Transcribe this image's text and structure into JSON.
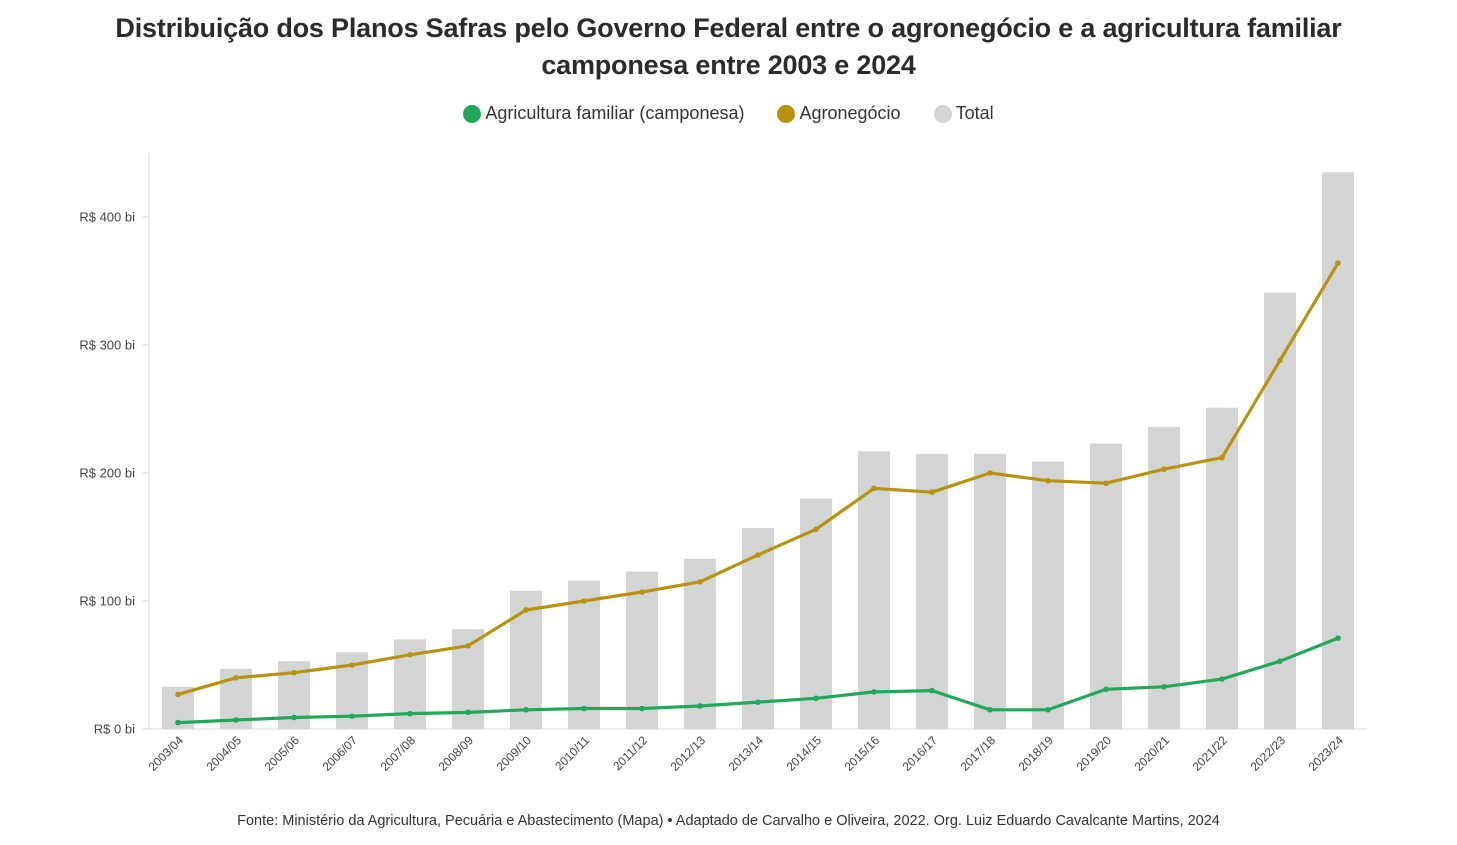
{
  "chart_data": {
    "type": "bar",
    "title": "Distribuição dos Planos Safras pelo Governo Federal entre o agronegócio e a agricultura familiar camponesa entre 2003 e 2024",
    "source": "Fonte: Ministério da Agricultura, Pecuária e Abastecimento (Mapa) • Adaptado de Carvalho e Oliveira, 2022. Org. Luiz Eduardo Cavalcante Martins, 2024",
    "legend_position": "top-center",
    "grid": false,
    "ylim": [
      0,
      450
    ],
    "y_ticks": [
      0,
      100,
      200,
      300,
      400
    ],
    "y_tick_labels": [
      "R$ 0 bi",
      "R$ 100 bi",
      "R$ 200 bi",
      "R$ 300 bi",
      "R$ 400 bi"
    ],
    "categories": [
      "2003/04",
      "2004/05",
      "2005/06",
      "2006/07",
      "2007/08",
      "2008/09",
      "2009/10",
      "2010/11",
      "2011/12",
      "2012/13",
      "2013/14",
      "2014/15",
      "2015/16",
      "2016/17",
      "2017/18",
      "2018/19",
      "2019/20",
      "2020/21",
      "2021/22",
      "2022/23",
      "2023/24"
    ],
    "series": [
      {
        "name": "Agricultura familiar (camponesa)",
        "type": "line",
        "color": "#22a85a",
        "values": [
          5,
          7,
          9,
          10,
          12,
          13,
          15,
          16,
          16,
          18,
          21,
          24,
          29,
          30,
          15,
          15,
          31,
          33,
          39,
          53,
          71
        ]
      },
      {
        "name": "Agronegócio",
        "type": "line",
        "color": "#b8930f",
        "values": [
          27,
          40,
          44,
          50,
          58,
          65,
          93,
          100,
          107,
          115,
          136,
          156,
          188,
          185,
          200,
          194,
          192,
          203,
          212,
          288,
          364
        ]
      },
      {
        "name": "Total",
        "type": "bar",
        "color": "#d3d4d4",
        "values": [
          33,
          47,
          53,
          60,
          70,
          78,
          108,
          116,
          123,
          133,
          157,
          180,
          217,
          215,
          215,
          209,
          223,
          236,
          251,
          341,
          435
        ]
      }
    ]
  }
}
